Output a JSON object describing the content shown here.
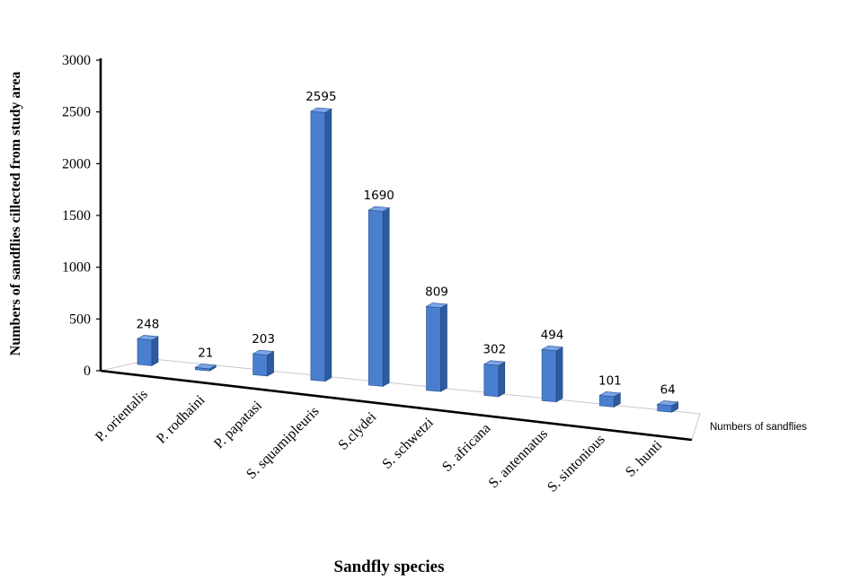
{
  "chart_data": {
    "type": "bar",
    "categories": [
      "P. orientalis",
      "P. rodhaini",
      "P. papatasi",
      "S. squamipleuris",
      "S.clydei",
      "S. schwetzi",
      "S. africana",
      "S. antennatus",
      "S. sintonious",
      "S. hunti"
    ],
    "series": [
      {
        "name": "Numbers of sandflies",
        "values": [
          248,
          21,
          203,
          2595,
          1690,
          809,
          302,
          494,
          101,
          64
        ]
      }
    ],
    "xlabel": "Sandfly  species",
    "ylabel": "Numbers of sandflies cillected from  study area",
    "yticks": [
      0,
      500,
      1000,
      1500,
      2000,
      2500,
      3000
    ],
    "ylim": [
      0,
      3000
    ],
    "data_labels": true,
    "three_d": true,
    "colors": {
      "bar_front": "#4a7fd0",
      "bar_side": "#2e5aa0",
      "bar_top": "#7aa6e6"
    }
  }
}
